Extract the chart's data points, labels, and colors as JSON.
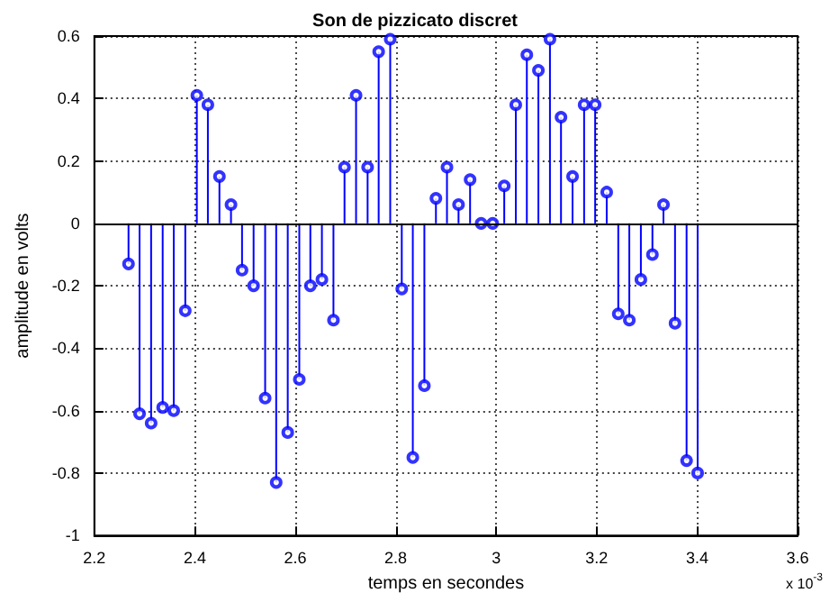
{
  "chart_data": {
    "type": "lollipop",
    "title": "Son de pizzicato discret",
    "xlabel": "temps en secondes",
    "ylabel": "amplitude en volts",
    "annotations": [
      "x 10$^{-3}$"
    ],
    "x": [
      2.268,
      2.29,
      2.313,
      2.336,
      2.358,
      2.381,
      2.404,
      2.426,
      2.449,
      2.472,
      2.494,
      2.517,
      2.54,
      2.562,
      2.585,
      2.608,
      2.63,
      2.653,
      2.676,
      2.698,
      2.721,
      2.744,
      2.766,
      2.789,
      2.812,
      2.834,
      2.857,
      2.88,
      2.902,
      2.925,
      2.948,
      2.97,
      2.993,
      3.016,
      3.039,
      3.061,
      3.084,
      3.107,
      3.129,
      3.152,
      3.175,
      3.197,
      3.22,
      3.243,
      3.265,
      3.288,
      3.311,
      3.333,
      3.356,
      3.379,
      3.401
    ],
    "series": [
      {
        "color": "#0000ff",
        "values": [
          -0.13,
          -0.61,
          -0.64,
          -0.59,
          -0.6,
          -0.28,
          0.41,
          0.38,
          0.15,
          0.06,
          -0.15,
          -0.2,
          -0.56,
          -0.83,
          -0.67,
          -0.5,
          -0.2,
          -0.18,
          -0.31,
          0.18,
          0.41,
          0.18,
          0.55,
          0.59,
          -0.21,
          -0.75,
          -0.52,
          0.08,
          0.18,
          0.06,
          0.14,
          0.0,
          0.0,
          0.12,
          0.38,
          0.54,
          0.49,
          0.59,
          0.34,
          0.15,
          0.38,
          0.38,
          0.1,
          -0.29,
          -0.31,
          -0.18,
          -0.1,
          0.06,
          -0.32,
          -0.76,
          -0.8
        ]
      }
    ],
    "xlim": [
      2.2,
      3.6
    ],
    "xticks": [
      2.2,
      2.4,
      2.6,
      2.8,
      3,
      3.2,
      3.4,
      3.6
    ],
    "ylim": [
      -1,
      0.6
    ],
    "yticks": [
      -1,
      -0.8,
      -0.6,
      -0.4,
      -0.2,
      0,
      0.2,
      0.4,
      0.6
    ],
    "ref_lines": [
      {
        "axis": "y",
        "value": 0,
        "color": "#000000"
      }
    ],
    "grid": true,
    "marker": "circle",
    "line_style": "solid"
  }
}
